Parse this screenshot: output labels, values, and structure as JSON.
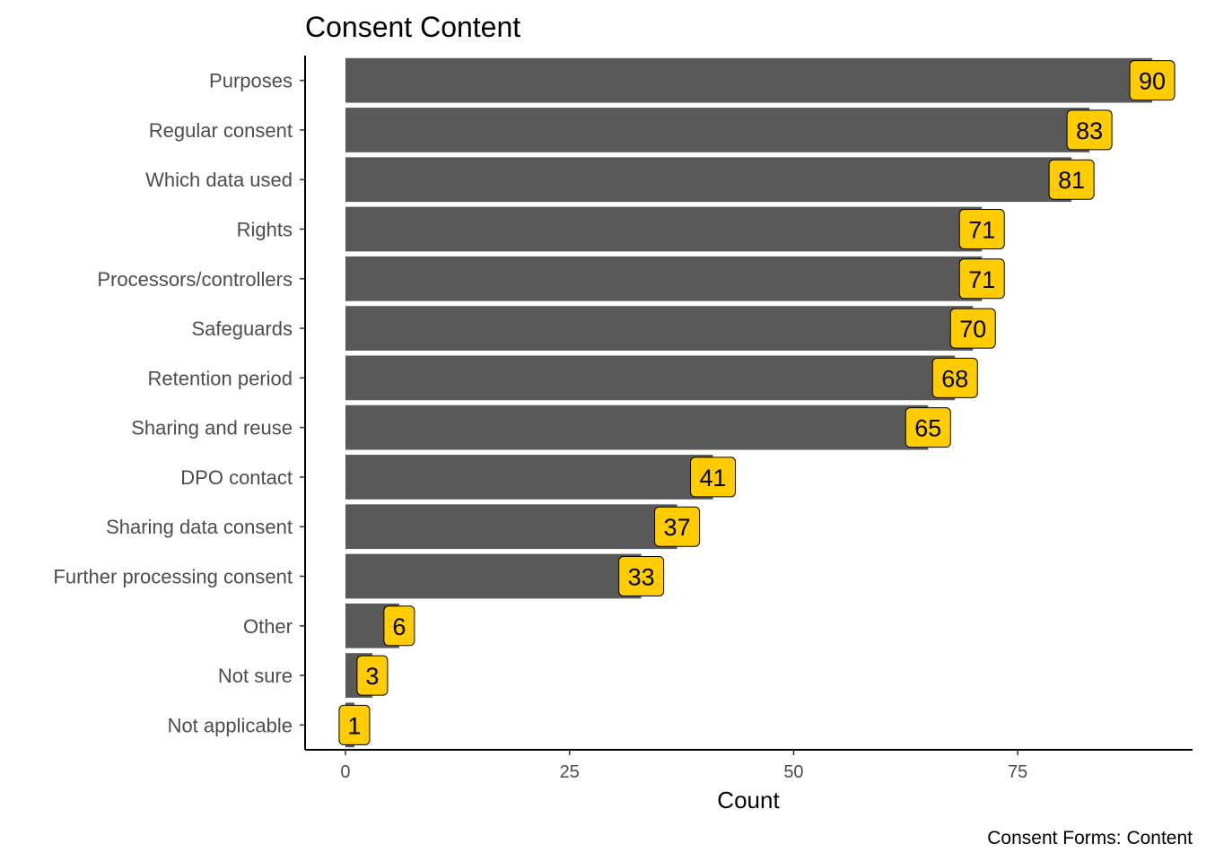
{
  "chart_data": {
    "type": "bar",
    "orientation": "horizontal",
    "title": "Consent Content",
    "xlabel": "Count",
    "ylabel": "",
    "caption": "Consent Forms: Content",
    "categories": [
      "Purposes",
      "Regular consent",
      "Which data used",
      "Rights",
      "Processors/controllers",
      "Safeguards",
      "Retention period",
      "Sharing and reuse",
      "DPO contact",
      "Sharing data consent",
      "Further processing consent",
      "Other",
      "Not sure",
      "Not applicable"
    ],
    "values": [
      90,
      83,
      81,
      71,
      71,
      70,
      68,
      65,
      41,
      37,
      33,
      6,
      3,
      1
    ],
    "xticks": [
      0,
      25,
      50,
      75
    ],
    "xlim": [
      -4.5,
      94.5
    ],
    "grid": false,
    "legend": "none",
    "bar_color": "#595959",
    "label_fill": "#FFCC00",
    "label_stroke": "#000000"
  }
}
